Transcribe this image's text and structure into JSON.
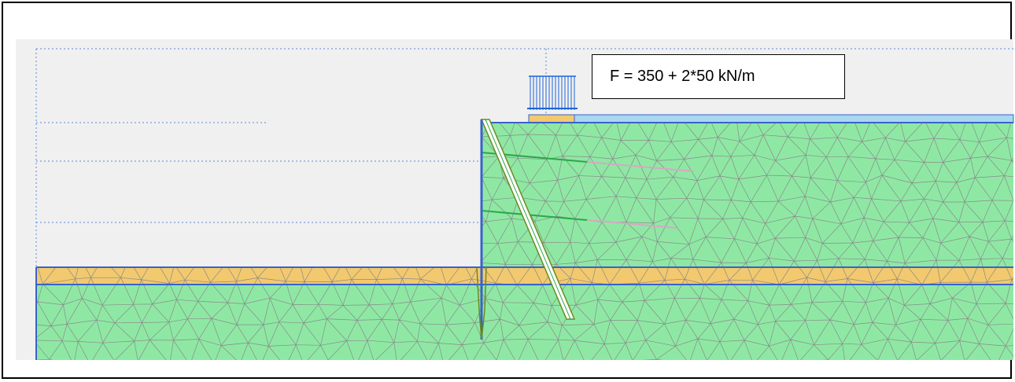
{
  "load_label": "F = 350 + 2*50 kN/m",
  "colors": {
    "frame": "#000000",
    "viewport_bg": "#f0f0f0",
    "soil": "#8ee8a4",
    "sand_layer": "#f2c96e",
    "water_strip": "#a9d8f0",
    "mesh_line": "#8a8a8a",
    "boundary_blue": "#3a62c9",
    "dotted_guide": "#5a86d6",
    "anchor_green": "#2ca84a",
    "anchor_grout": "#d9a6c4",
    "load_arrow": "#1e64d8",
    "strut_outline": "#6a8c20"
  }
}
